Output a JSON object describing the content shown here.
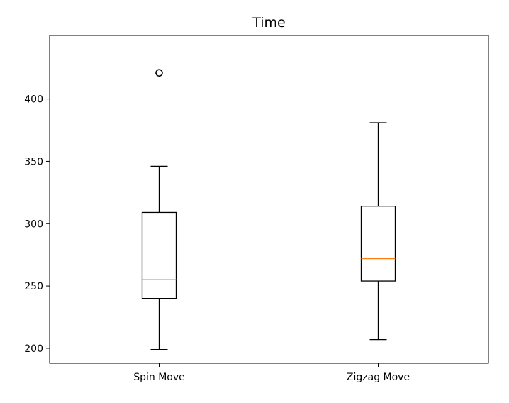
{
  "chart_data": {
    "type": "box",
    "title": "Time",
    "xlabel": "",
    "ylabel": "",
    "ylim": [
      188,
      451
    ],
    "yticks": [
      200,
      250,
      300,
      350,
      400
    ],
    "categories": [
      "Spin Move",
      "Zigzag Move"
    ],
    "boxes": [
      {
        "label": "Spin Move",
        "whisker_low": 199,
        "q1": 240,
        "median": 255,
        "q3": 309,
        "whisker_high": 346,
        "outliers": [
          421
        ]
      },
      {
        "label": "Zigzag Move",
        "whisker_low": 207,
        "q1": 254,
        "median": 272,
        "q3": 314,
        "whisker_high": 381,
        "outliers": []
      }
    ],
    "grid": false,
    "legend": "none",
    "colors": {
      "box": "#000000",
      "median": "#ff7f0e",
      "outlier": "#000000"
    }
  }
}
